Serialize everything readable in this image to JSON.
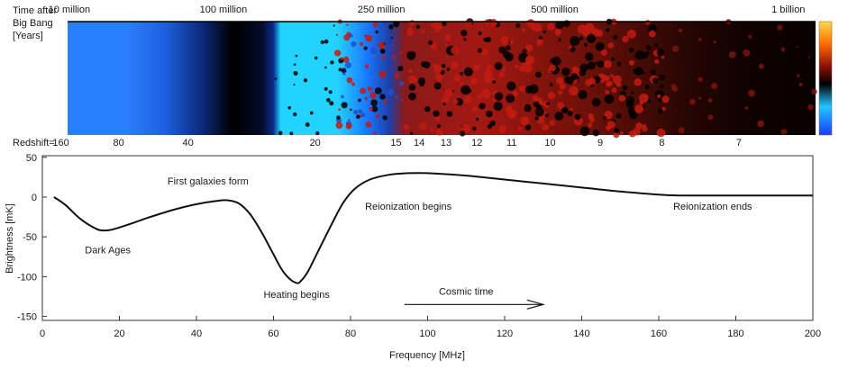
{
  "strip": {
    "time_title_lines": [
      "Time after",
      "Big Bang",
      "[Years]"
    ],
    "time_labels": [
      {
        "label": "10 million",
        "freq": 7
      },
      {
        "label": "100 million",
        "freq": 47
      },
      {
        "label": "250 million",
        "freq": 88
      },
      {
        "label": "500 million",
        "freq": 133
      },
      {
        "label": "1 billion",
        "freq": 198
      }
    ],
    "redshift_title": "Redshift=",
    "redshift_labels": [
      {
        "label": "160",
        "freq": 2
      },
      {
        "label": "80",
        "freq": 17
      },
      {
        "label": "40",
        "freq": 35
      },
      {
        "label": "20",
        "freq": 68
      },
      {
        "label": "15",
        "freq": 89
      },
      {
        "label": "14",
        "freq": 95
      },
      {
        "label": "13",
        "freq": 102
      },
      {
        "label": "12",
        "freq": 110
      },
      {
        "label": "11",
        "freq": 119
      },
      {
        "label": "10",
        "freq": 129
      },
      {
        "label": "9",
        "freq": 142
      },
      {
        "label": "8",
        "freq": 158
      },
      {
        "label": "7",
        "freq": 178
      }
    ],
    "colors": {
      "dark_ages": "#2a7fff",
      "black": "#000000",
      "heating": "#23d3ff",
      "ionized": "#c21b10"
    }
  },
  "chart_data": {
    "type": "line",
    "title": "",
    "xlabel": "Frequency [MHz]",
    "ylabel": "Brightness [mK]",
    "xlim": [
      0,
      200
    ],
    "ylim": [
      -155,
      52
    ],
    "xticks": [
      0,
      20,
      40,
      60,
      80,
      100,
      120,
      140,
      160,
      180,
      200
    ],
    "yticks": [
      50,
      0,
      -50,
      -100,
      -150
    ],
    "series": [
      {
        "x": [
          3,
          6,
          10,
          14,
          16,
          18,
          22,
          28,
          34,
          40,
          45,
          48,
          51,
          54,
          57,
          60,
          62,
          64,
          66,
          67,
          69,
          72,
          75,
          78,
          81,
          85,
          90,
          95,
          100,
          110,
          120,
          130,
          140,
          150,
          160,
          165,
          170,
          180,
          200
        ],
        "y": [
          0,
          -10,
          -28,
          -40,
          -42,
          -41,
          -35,
          -25,
          -16,
          -9,
          -5,
          -4,
          -8,
          -22,
          -45,
          -72,
          -90,
          -102,
          -108,
          -106,
          -93,
          -64,
          -35,
          -8,
          10,
          22,
          28,
          30,
          30,
          27,
          22,
          17,
          12,
          7,
          3,
          2,
          2,
          2,
          2
        ]
      }
    ],
    "annotations": [
      {
        "text": "First galaxies form",
        "x": 43,
        "y": 16
      },
      {
        "text": "Dark Ages",
        "x": 17,
        "y": -71
      },
      {
        "text": "Heating begins",
        "x": 66,
        "y": -127
      },
      {
        "text": "Reionization begins",
        "x": 95,
        "y": -16
      },
      {
        "text": "Reionization ends",
        "x": 174,
        "y": -16
      },
      {
        "text": "Cosmic time",
        "x": 110,
        "y": -123
      }
    ],
    "cosmic_time_arrow": {
      "x_start": 94,
      "x_end": 130,
      "y": -135
    }
  }
}
